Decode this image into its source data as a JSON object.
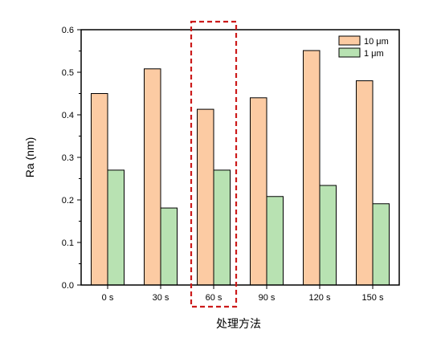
{
  "chart_data": {
    "type": "bar",
    "title": "",
    "xlabel": "处理方法",
    "ylabel": "Ra (nm)",
    "categories": [
      "0 s",
      "30 s",
      "60 s",
      "90 s",
      "120 s",
      "150 s"
    ],
    "series": [
      {
        "name": "10 μm",
        "color": "#FCCBA3",
        "values": [
          0.45,
          0.508,
          0.413,
          0.44,
          0.551,
          0.48
        ]
      },
      {
        "name": "1 μm",
        "color": "#B8E2B2",
        "values": [
          0.27,
          0.181,
          0.27,
          0.208,
          0.234,
          0.191
        ]
      }
    ],
    "ylim": [
      0,
      0.6
    ],
    "yticks": [
      "0.0",
      "0.1",
      "0.2",
      "0.3",
      "0.4",
      "0.5",
      "0.6"
    ],
    "grid": false,
    "legend": "top-right",
    "highlight": {
      "category": "60 s",
      "color": "#CC1A1A",
      "style": "dashed"
    }
  }
}
